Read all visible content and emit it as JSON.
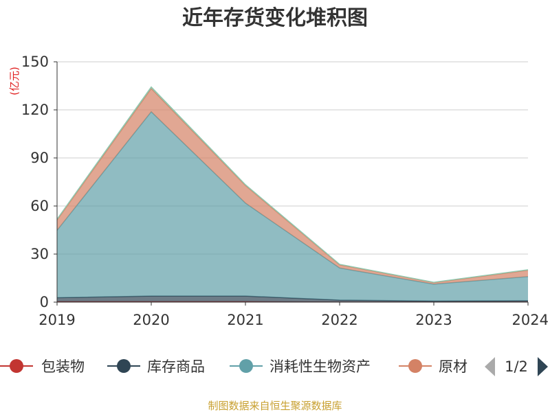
{
  "chart_data": {
    "type": "area",
    "stacked": true,
    "title": "近年存货变化堆积图",
    "unit_label": "(亿元)",
    "x": [
      "2019",
      "2020",
      "2021",
      "2022",
      "2023",
      "2024"
    ],
    "ylim": [
      0,
      150
    ],
    "yticks": [
      "0",
      "30",
      "60",
      "90",
      "120",
      "150"
    ],
    "grid": true,
    "series": [
      {
        "name": "包装物",
        "values": [
          0.3,
          0.3,
          0.3,
          0.1,
          0.1,
          0.1
        ],
        "color": "#c23531"
      },
      {
        "name": "库存商品",
        "values": [
          2.5,
          3.5,
          3.5,
          1.2,
          0.6,
          0.8
        ],
        "color": "#2f4554"
      },
      {
        "name": "消耗性生物资产",
        "values": [
          42,
          115,
          58,
          20,
          10.5,
          15
        ],
        "color": "#61a0a8"
      },
      {
        "name": "原材料",
        "values": [
          6.5,
          14.5,
          11,
          2,
          1,
          4
        ],
        "color": "#d48265"
      },
      {
        "name": "",
        "values": [
          0.5,
          1,
          0.5,
          0.3,
          0.2,
          0.3
        ],
        "color": "#91c7ae"
      }
    ],
    "legend": {
      "position": "bottom",
      "visible_labels": [
        "包装物",
        "库存商品",
        "消耗性生物资产",
        "原材"
      ],
      "page": "1/2"
    },
    "source": "制图数据来自恒生聚源数据库"
  }
}
